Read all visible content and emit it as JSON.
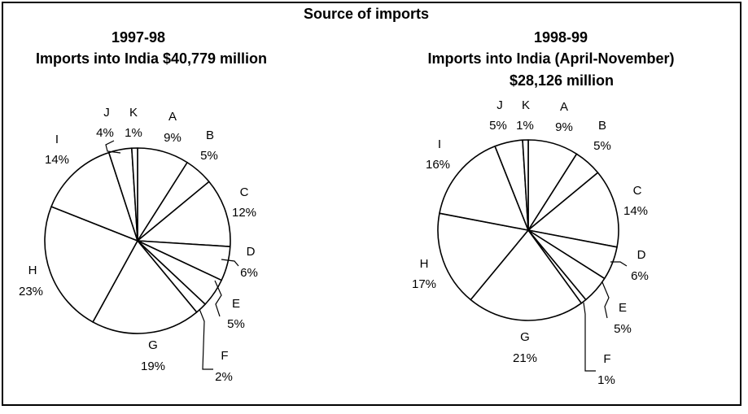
{
  "figure": {
    "title": "Source of imports"
  },
  "chart_data": [
    {
      "type": "pie",
      "title": "1997-98",
      "subtitle": "Imports into India $40,779 million",
      "subtitle2": "",
      "slices": [
        {
          "label": "A",
          "value": 9,
          "text": "9%"
        },
        {
          "label": "B",
          "value": 5,
          "text": "5%"
        },
        {
          "label": "C",
          "value": 12,
          "text": "12%"
        },
        {
          "label": "D",
          "value": 6,
          "text": "6%"
        },
        {
          "label": "E",
          "value": 5,
          "text": "5%"
        },
        {
          "label": "F",
          "value": 2,
          "text": "2%"
        },
        {
          "label": "G",
          "value": 19,
          "text": "19%"
        },
        {
          "label": "H",
          "value": 23,
          "text": "23%"
        },
        {
          "label": "I",
          "value": 14,
          "text": "14%"
        },
        {
          "label": "J",
          "value": 4,
          "text": "4%"
        },
        {
          "label": "K",
          "value": 1,
          "text": "1%"
        }
      ]
    },
    {
      "type": "pie",
      "title": "1998-99",
      "subtitle": "Imports into India (April-November)",
      "subtitle2": "$28,126 million",
      "slices": [
        {
          "label": "A",
          "value": 9,
          "text": "9%"
        },
        {
          "label": "B",
          "value": 5,
          "text": "5%"
        },
        {
          "label": "C",
          "value": 14,
          "text": "14%"
        },
        {
          "label": "D",
          "value": 6,
          "text": "6%"
        },
        {
          "label": "E",
          "value": 5,
          "text": "5%"
        },
        {
          "label": "F",
          "value": 1,
          "text": "1%"
        },
        {
          "label": "G",
          "value": 21,
          "text": "21%"
        },
        {
          "label": "H",
          "value": 17,
          "text": "17%"
        },
        {
          "label": "I",
          "value": 16,
          "text": "16%"
        },
        {
          "label": "J",
          "value": 5,
          "text": "5%"
        },
        {
          "label": "K",
          "value": 1,
          "text": "1%"
        }
      ]
    }
  ]
}
